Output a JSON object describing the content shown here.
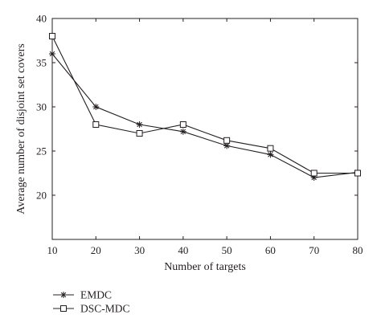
{
  "chart_data": {
    "type": "line",
    "x": [
      10,
      20,
      30,
      40,
      50,
      60,
      70,
      80
    ],
    "series": [
      {
        "name": "EMDC",
        "marker": "asterisk",
        "values": [
          36,
          30,
          28,
          27.2,
          25.6,
          24.6,
          22,
          22.6
        ]
      },
      {
        "name": "DSC-MDC",
        "marker": "square",
        "values": [
          38,
          28,
          27,
          28,
          26.2,
          25.3,
          22.5,
          22.5
        ]
      }
    ],
    "title": "",
    "xlabel": "Number of targets",
    "ylabel": "Average number of disjoint set covers",
    "xlim": [
      10,
      80
    ],
    "ylim": [
      15,
      40
    ],
    "xticks": [
      10,
      20,
      30,
      40,
      50,
      60,
      70,
      80
    ],
    "yticks": [
      20,
      25,
      30,
      35,
      40
    ],
    "grid": false,
    "legend_position": "bottom-left",
    "line_color": "#231f20"
  }
}
